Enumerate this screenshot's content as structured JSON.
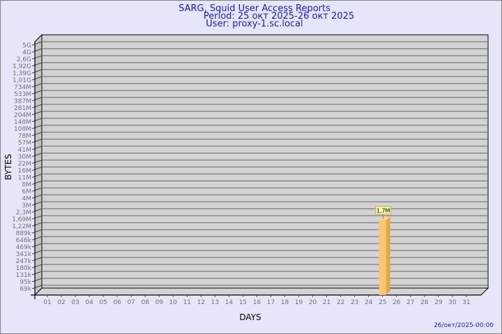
{
  "header": {
    "title": "SARG, Squid User Access Reports",
    "period": "Period: 25 окт 2025-26 окт 2025",
    "user": "User: proxy-1.sc.local"
  },
  "footer": {
    "timestamp": "26/окт/2025-00:00"
  },
  "colors": {
    "background": "#e6e6fa",
    "plot": "#d3d3d3",
    "bar": "#fcc66a",
    "bar_side": "#e0a850",
    "title": "#1a1aa0"
  },
  "chart_data": {
    "type": "bar",
    "title": "",
    "xlabel": "DAYS",
    "ylabel": "BYTES",
    "y_scale": "log",
    "y_ticks": [
      "5G",
      "4G",
      "2,6G",
      "1,92G",
      "1,39G",
      "1,01G",
      "734M",
      "533M",
      "387M",
      "281M",
      "204M",
      "148M",
      "108M",
      "78M",
      "57M",
      "41M",
      "30M",
      "22M",
      "16M",
      "11M",
      "8M",
      "6M",
      "4M",
      "3M",
      "2,3M",
      "1,69M",
      "1,22M",
      "889k",
      "646k",
      "469k",
      "341k",
      "247k",
      "180k",
      "131k",
      "95k",
      "69k"
    ],
    "categories": [
      "01",
      "02",
      "03",
      "04",
      "05",
      "06",
      "07",
      "08",
      "09",
      "10",
      "11",
      "12",
      "13",
      "14",
      "15",
      "16",
      "17",
      "18",
      "19",
      "20",
      "21",
      "22",
      "23",
      "24",
      "25",
      "26",
      "27",
      "28",
      "29",
      "30",
      "31"
    ],
    "bars": [
      {
        "day": "25",
        "value": 1700000,
        "label": "1,7M"
      }
    ],
    "grid": true
  }
}
